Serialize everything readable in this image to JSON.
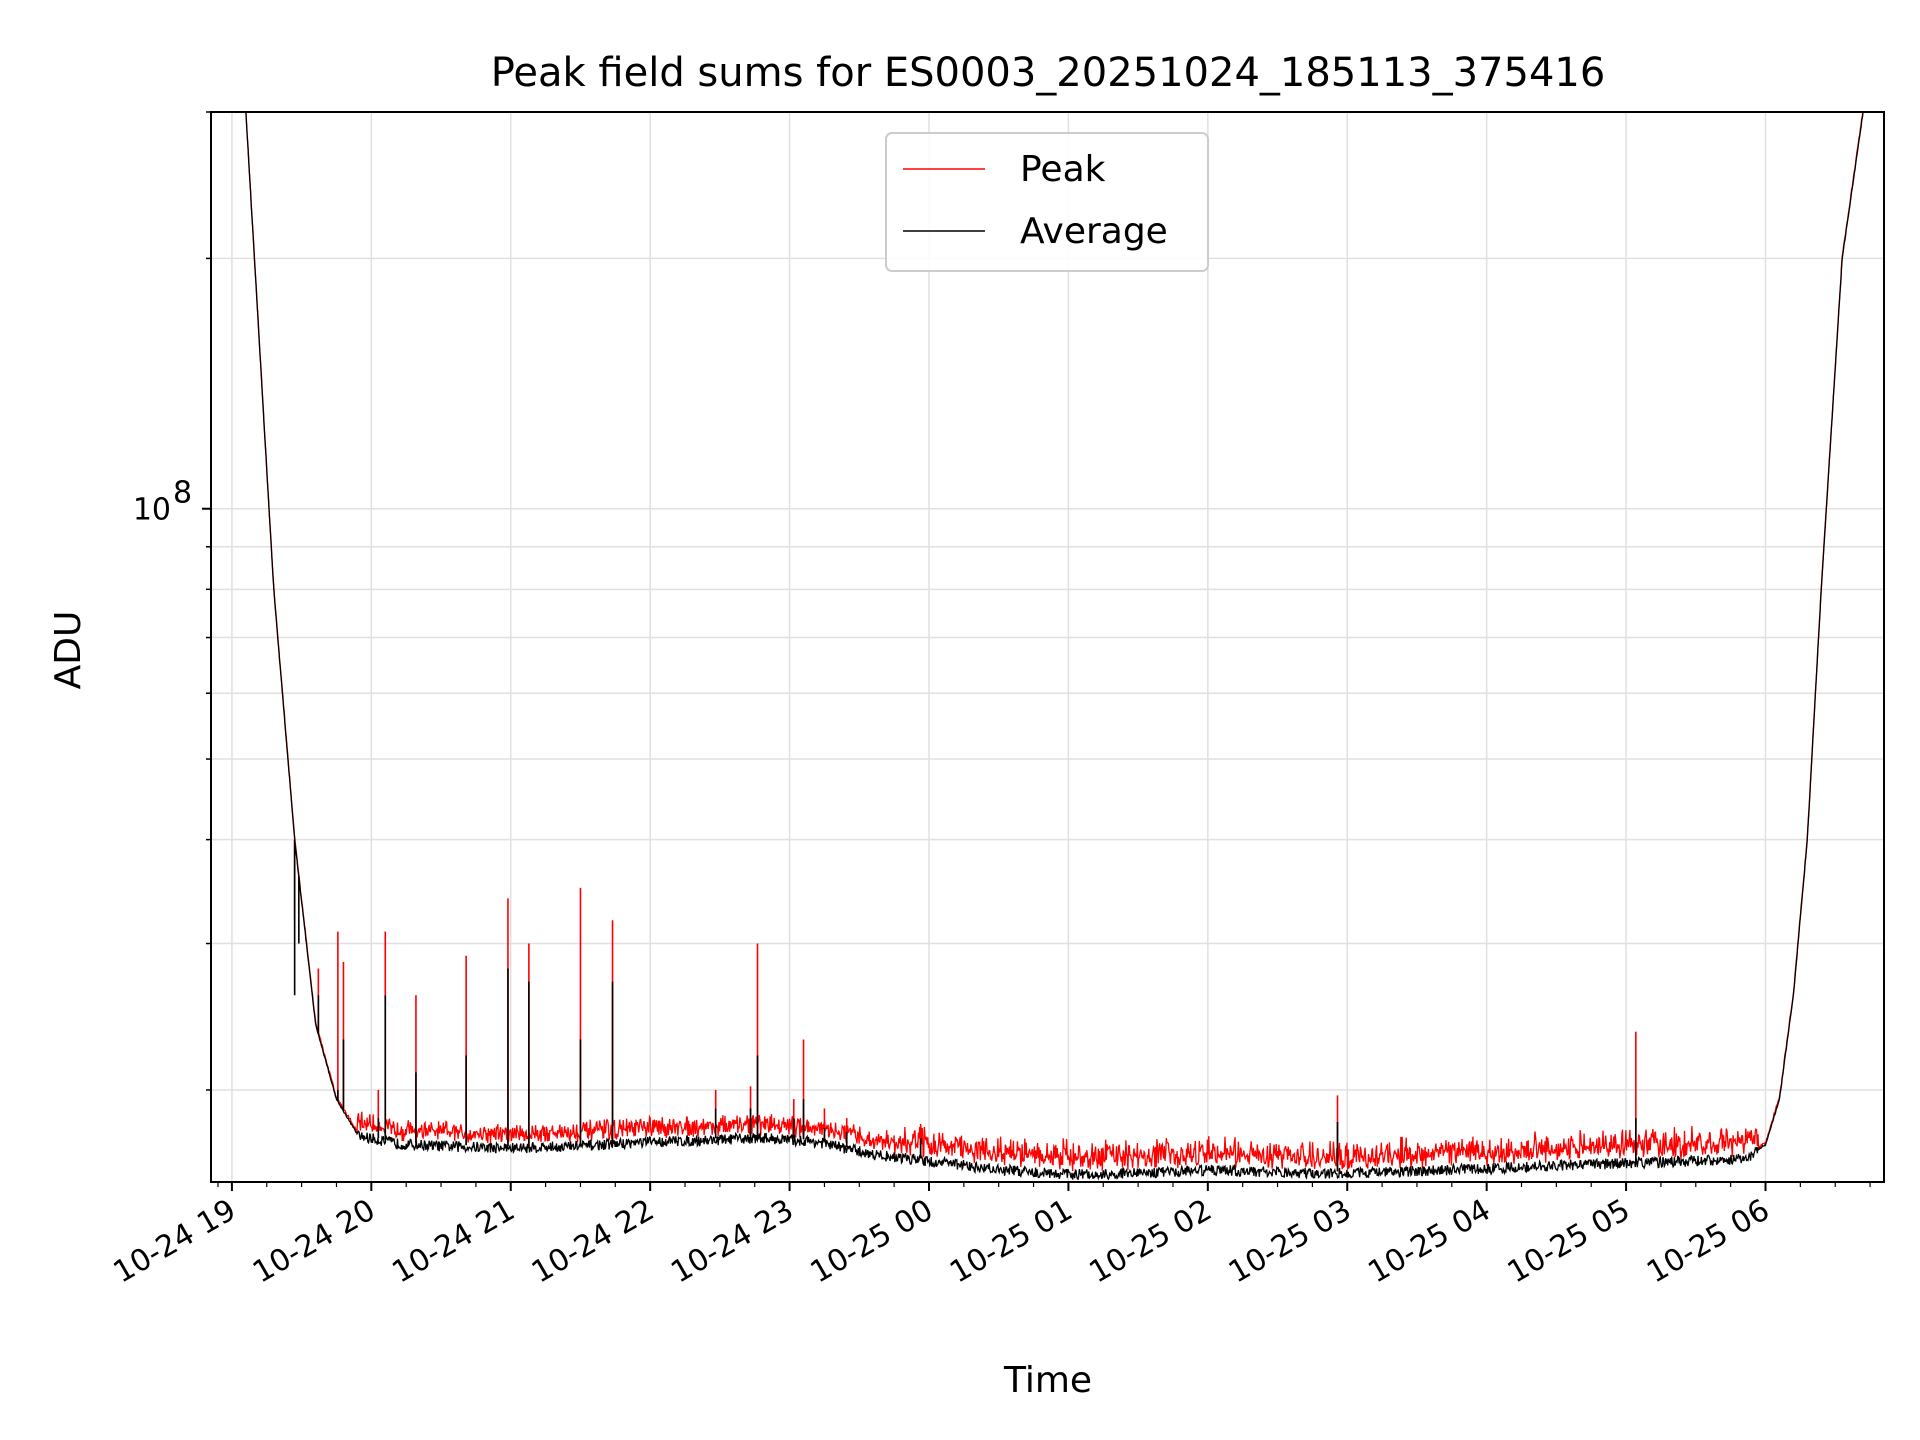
{
  "chart_data": {
    "type": "line",
    "title": "Peak field sums for ES0003_20251024_185113_375416",
    "xlabel": "Time",
    "ylabel": "ADU",
    "yscale": "log",
    "ylim": [
      15500000,
      300000000
    ],
    "xlim_hours": [
      -0.15,
      11.85
    ],
    "x_origin": "10-24 19:00",
    "x_ticks": [
      "10-24 19",
      "10-24 20",
      "10-24 21",
      "10-24 22",
      "10-24 23",
      "10-25 00",
      "10-25 01",
      "10-25 02",
      "10-25 03",
      "10-25 04",
      "10-25 05",
      "10-25 06"
    ],
    "y_tick_labels": [
      {
        "value": 100000000,
        "label": "10^8",
        "base": "10",
        "exp": "8"
      }
    ],
    "grid": true,
    "legend_position": "upper center",
    "colors": {
      "peak": "#ff0000",
      "average": "#000000",
      "grid": "#e0e0e0"
    },
    "series": [
      {
        "name": "Peak",
        "color": "#ff0000"
      },
      {
        "name": "Average",
        "color": "#000000"
      }
    ],
    "average_baseline": {
      "hours": [
        0.1,
        0.3,
        0.45,
        0.6,
        0.75,
        0.9,
        1.2,
        1.5,
        2.0,
        2.5,
        3.0,
        3.5,
        3.8,
        4.2,
        4.6,
        5.0,
        5.5,
        6.0,
        6.5,
        7.0,
        7.5,
        8.0,
        8.5,
        9.0,
        9.5,
        10.0,
        10.5,
        10.85,
        11.0,
        11.1,
        11.2,
        11.3,
        11.4,
        11.55,
        11.7
      ],
      "adu": [
        300000000,
        80000000,
        40000000,
        24000000,
        19500000,
        17700000,
        17300000,
        17200000,
        17100000,
        17200000,
        17400000,
        17500000,
        17600000,
        17400000,
        16800000,
        16500000,
        16100000,
        15900000,
        15950000,
        16100000,
        16000000,
        15950000,
        16050000,
        16150000,
        16300000,
        16400000,
        16500000,
        16600000,
        17200000,
        19500000,
        26000000,
        40000000,
        80000000,
        200000000,
        300000000
      ]
    },
    "peak_spikes": [
      {
        "hour": 0.45,
        "peak": 32000000,
        "avg": 26000000
      },
      {
        "hour": 0.48,
        "peak": 35000000,
        "avg": 30000000
      },
      {
        "hour": 0.62,
        "peak": 28000000,
        "avg": 26000000
      },
      {
        "hour": 0.76,
        "peak": 31000000,
        "avg": 20000000
      },
      {
        "hour": 0.8,
        "peak": 28500000,
        "avg": 23000000
      },
      {
        "hour": 1.05,
        "peak": 20000000,
        "avg": 18500000
      },
      {
        "hour": 1.1,
        "peak": 31000000,
        "avg": 26000000
      },
      {
        "hour": 1.32,
        "peak": 26000000,
        "avg": 21000000
      },
      {
        "hour": 1.68,
        "peak": 29000000,
        "avg": 22000000
      },
      {
        "hour": 1.98,
        "peak": 34000000,
        "avg": 28000000
      },
      {
        "hour": 2.13,
        "peak": 30000000,
        "avg": 27000000
      },
      {
        "hour": 2.5,
        "peak": 35000000,
        "avg": 23000000
      },
      {
        "hour": 2.73,
        "peak": 32000000,
        "avg": 27000000
      },
      {
        "hour": 3.47,
        "peak": 20000000,
        "avg": 19000000
      },
      {
        "hour": 3.72,
        "peak": 20200000,
        "avg": 19000000
      },
      {
        "hour": 3.77,
        "peak": 30000000,
        "avg": 22000000
      },
      {
        "hour": 4.03,
        "peak": 19500000,
        "avg": 18500000
      },
      {
        "hour": 4.1,
        "peak": 23000000,
        "avg": 19500000
      },
      {
        "hour": 4.25,
        "peak": 19000000,
        "avg": 18000000
      },
      {
        "hour": 4.41,
        "peak": 18500000,
        "avg": 17800000
      },
      {
        "hour": 4.94,
        "peak": 18200000,
        "avg": 17500000
      },
      {
        "hour": 7.93,
        "peak": 19700000,
        "avg": 18300000
      },
      {
        "hour": 10.07,
        "peak": 23500000,
        "avg": 18500000
      }
    ]
  }
}
